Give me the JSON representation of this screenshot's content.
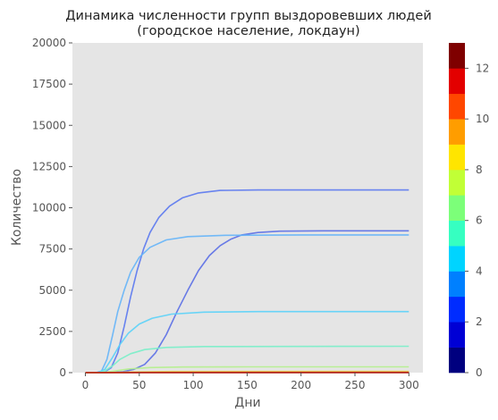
{
  "chart_data": {
    "type": "line",
    "title": "Динамика численности групп выздоровевших людей",
    "subtitle": "(городское население, локдаун)",
    "xlabel": "Дни",
    "ylabel": "Количество",
    "xlim": [
      -12,
      313
    ],
    "ylim": [
      0,
      20000
    ],
    "x_ticks": [
      0,
      50,
      100,
      150,
      200,
      250,
      300
    ],
    "y_ticks": [
      0,
      2500,
      5000,
      7500,
      10000,
      12500,
      15000,
      17500,
      20000
    ],
    "grid": false,
    "background": "#e5e5e5",
    "series": [
      {
        "color": "#5a6ee6",
        "values": [
          [
            0,
            0
          ],
          [
            15,
            0
          ],
          [
            25,
            10
          ],
          [
            35,
            60
          ],
          [
            45,
            200
          ],
          [
            55,
            500
          ],
          [
            65,
            1200
          ],
          [
            75,
            2300
          ],
          [
            85,
            3700
          ],
          [
            95,
            5000
          ],
          [
            105,
            6200
          ],
          [
            115,
            7100
          ],
          [
            125,
            7700
          ],
          [
            135,
            8100
          ],
          [
            145,
            8350
          ],
          [
            160,
            8500
          ],
          [
            180,
            8580
          ],
          [
            220,
            8600
          ],
          [
            300,
            8600
          ]
        ]
      },
      {
        "color": "#5a78f0",
        "values": [
          [
            0,
            0
          ],
          [
            10,
            0
          ],
          [
            18,
            50
          ],
          [
            24,
            300
          ],
          [
            30,
            1200
          ],
          [
            36,
            2800
          ],
          [
            42,
            4600
          ],
          [
            48,
            6200
          ],
          [
            54,
            7500
          ],
          [
            60,
            8500
          ],
          [
            68,
            9400
          ],
          [
            78,
            10100
          ],
          [
            90,
            10600
          ],
          [
            105,
            10900
          ],
          [
            125,
            11050
          ],
          [
            160,
            11080
          ],
          [
            300,
            11080
          ]
        ]
      },
      {
        "color": "#64b4f8",
        "values": [
          [
            0,
            0
          ],
          [
            10,
            0
          ],
          [
            15,
            100
          ],
          [
            20,
            800
          ],
          [
            25,
            2200
          ],
          [
            30,
            3700
          ],
          [
            36,
            5000
          ],
          [
            42,
            6100
          ],
          [
            50,
            7000
          ],
          [
            60,
            7600
          ],
          [
            75,
            8050
          ],
          [
            95,
            8250
          ],
          [
            130,
            8330
          ],
          [
            200,
            8350
          ],
          [
            300,
            8350
          ]
        ]
      },
      {
        "color": "#5ad2f8",
        "values": [
          [
            0,
            0
          ],
          [
            12,
            0
          ],
          [
            18,
            200
          ],
          [
            25,
            900
          ],
          [
            32,
            1700
          ],
          [
            40,
            2400
          ],
          [
            50,
            2950
          ],
          [
            62,
            3300
          ],
          [
            80,
            3550
          ],
          [
            110,
            3670
          ],
          [
            160,
            3700
          ],
          [
            300,
            3700
          ]
        ]
      },
      {
        "color": "#78eec8",
        "values": [
          [
            0,
            0
          ],
          [
            12,
            0
          ],
          [
            18,
            100
          ],
          [
            25,
            400
          ],
          [
            32,
            800
          ],
          [
            42,
            1150
          ],
          [
            55,
            1400
          ],
          [
            75,
            1530
          ],
          [
            110,
            1580
          ],
          [
            300,
            1600
          ]
        ]
      },
      {
        "color": "#b4f08c",
        "values": [
          [
            0,
            0
          ],
          [
            15,
            0
          ],
          [
            25,
            80
          ],
          [
            40,
            220
          ],
          [
            60,
            310
          ],
          [
            90,
            340
          ],
          [
            150,
            350
          ],
          [
            300,
            350
          ]
        ]
      },
      {
        "color": "#e6d25a",
        "values": [
          [
            0,
            0
          ],
          [
            20,
            0
          ],
          [
            40,
            40
          ],
          [
            80,
            70
          ],
          [
            300,
            80
          ]
        ]
      },
      {
        "color": "#f0a03c",
        "values": [
          [
            0,
            0
          ],
          [
            30,
            10
          ],
          [
            100,
            25
          ],
          [
            300,
            30
          ]
        ]
      },
      {
        "color": "#dc4628",
        "values": [
          [
            0,
            0
          ],
          [
            300,
            10
          ]
        ]
      },
      {
        "color": "#aa1e14",
        "values": [
          [
            0,
            0
          ],
          [
            300,
            5
          ]
        ]
      }
    ],
    "colorbar": {
      "ticks": [
        0,
        2,
        4,
        6,
        8,
        10,
        12
      ],
      "range": [
        0,
        13
      ],
      "colors": [
        "#00007f",
        "#0000d5",
        "#002cff",
        "#0080ff",
        "#00d4ff",
        "#36ffc1",
        "#7cff79",
        "#c1ff36",
        "#ffe500",
        "#ff9d00",
        "#ff4700",
        "#e30000",
        "#7f0000"
      ]
    }
  }
}
